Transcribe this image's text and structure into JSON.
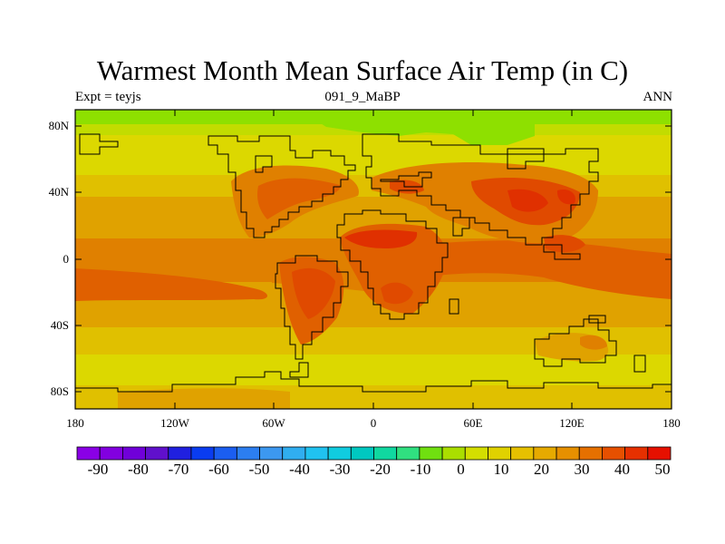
{
  "title": "Warmest Month Mean Surface Air Temp (in C)",
  "subtitle_left": "Expt = teyjs",
  "subtitle_center": "091_9_MaBP",
  "subtitle_right": "ANN",
  "lat_ticks": [
    "80N",
    "40N",
    "0",
    "40S",
    "80S"
  ],
  "lon_ticks": [
    "180",
    "120W",
    "60W",
    "0",
    "60E",
    "120E",
    "180"
  ],
  "colorbar": {
    "labels": [
      "-90",
      "-80",
      "-70",
      "-60",
      "-50",
      "-40",
      "-30",
      "-20",
      "-10",
      "0",
      "10",
      "20",
      "30",
      "40",
      "50"
    ],
    "colors": [
      "#8a00e6",
      "#8200e0",
      "#7000d9",
      "#6010cc",
      "#2020e0",
      "#0a3cf0",
      "#1b5ef0",
      "#2c7ef0",
      "#3c98f0",
      "#30aef0",
      "#20c2f0",
      "#10cce0",
      "#00c8c0",
      "#10d8a0",
      "#30e080",
      "#70e010",
      "#aade00",
      "#d4de00",
      "#e0d200",
      "#e6c000",
      "#e6aa00",
      "#e69000",
      "#e67000",
      "#e65000",
      "#e63000",
      "#e61000"
    ]
  },
  "map": {
    "lon_range": [
      -180,
      180
    ],
    "lat_range": [
      -90,
      90
    ],
    "colors": {
      "green": "#8ee000",
      "lime": "#c2dc00",
      "yellow": "#dcd800",
      "gold": "#e0c000",
      "amber": "#e0a200",
      "orange": "#e08000",
      "deep_orange": "#e06000",
      "red_orange": "#e04a00",
      "red": "#e03000"
    }
  }
}
